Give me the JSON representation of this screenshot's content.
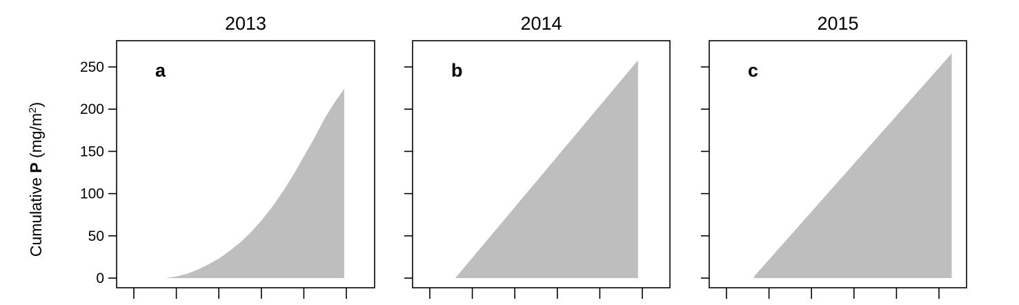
{
  "figure": {
    "ylabel": {
      "prefix": "Cumulative ",
      "bold": "P",
      "units_open": " (mg/m",
      "units_sup": "2",
      "units_close": ")"
    },
    "fill_color": "#bebebe"
  },
  "chart_data": [
    {
      "type": "area",
      "title": "2013",
      "panel_label": "a",
      "x_ticks": [
        0,
        1,
        2,
        3,
        4,
        5
      ],
      "ylim": [
        -10,
        280
      ],
      "yticks": [
        0,
        50,
        100,
        150,
        200,
        250
      ],
      "ytick_labels": [
        "0",
        "50",
        "100",
        "150",
        "200",
        "250"
      ],
      "x": [
        0.75,
        1.0,
        1.25,
        1.5,
        1.75,
        2.0,
        2.25,
        2.5,
        2.75,
        3.0,
        3.25,
        3.5,
        3.75,
        4.0,
        4.25,
        4.5,
        4.75,
        4.95
      ],
      "y": [
        0,
        2,
        5,
        10,
        16,
        23,
        32,
        42,
        54,
        68,
        84,
        102,
        122,
        144,
        166,
        190,
        210,
        224
      ]
    },
    {
      "type": "area",
      "title": "2014",
      "panel_label": "b",
      "x_ticks": [
        0,
        1,
        2,
        3,
        4,
        5
      ],
      "ylim": [
        -10,
        280
      ],
      "yticks": [
        0,
        50,
        100,
        150,
        200,
        250
      ],
      "ytick_labels": [],
      "x": [
        0.6,
        4.9
      ],
      "y": [
        0,
        258
      ]
    },
    {
      "type": "area",
      "title": "2015",
      "panel_label": "c",
      "x_ticks": [
        0,
        1,
        2,
        3,
        4,
        5
      ],
      "ylim": [
        -10,
        280
      ],
      "yticks": [
        0,
        50,
        100,
        150,
        200,
        250
      ],
      "ytick_labels": [],
      "x": [
        0.65,
        5.3
      ],
      "y": [
        2,
        266
      ]
    }
  ]
}
